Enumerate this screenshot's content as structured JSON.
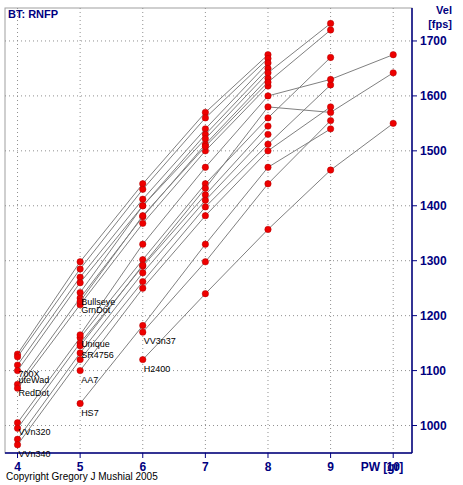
{
  "chart_data": {
    "type": "line",
    "title": "BT: RNFP",
    "y_label": "Vel [fps]",
    "x_label": "PW [gr]",
    "annotation": "Copyright  Gregory J Mushial  2005",
    "x": [
      4,
      5,
      6,
      7,
      8,
      9,
      10
    ],
    "xlim": [
      3.8,
      10.3
    ],
    "xticks": [
      4,
      5,
      6,
      7,
      8,
      9,
      10
    ],
    "ylim": [
      950,
      1760
    ],
    "yticks": [
      1000,
      1100,
      1200,
      1300,
      1400,
      1500,
      1600,
      1700
    ],
    "grid": true,
    "color": "#808080",
    "marker": "circle",
    "series": [
      {
        "values": [
          1130,
          1298,
          1440,
          1570,
          1675,
          null,
          null
        ]
      },
      {
        "values": [
          1125,
          1285,
          1430,
          1560,
          1668,
          null,
          null
        ]
      },
      {
        "name": "700X",
        "values": [
          1110,
          1270,
          1412,
          1540,
          1660,
          null,
          null
        ]
      },
      {
        "name": "uteWad",
        "values": [
          1100,
          1260,
          1400,
          1530,
          1650,
          null,
          null
        ]
      },
      {
        "name": "RedDot",
        "values": [
          1075,
          1232,
          1380,
          1512,
          1632,
          null,
          null
        ]
      },
      {
        "values": [
          1068,
          1220,
          1368,
          1500,
          1618,
          null,
          null
        ]
      },
      {
        "name": "VVn320",
        "values": [
          1005,
          1160,
          1302,
          1440,
          1560,
          1670,
          null
        ]
      },
      {
        "values": [
          995,
          1150,
          1290,
          1420,
          1545,
          null,
          null
        ]
      },
      {
        "values": [
          975,
          1132,
          1278,
          1410,
          1530,
          null,
          null
        ]
      },
      {
        "name": "VVn340",
        "values": [
          965,
          1120,
          1262,
          1398,
          1512,
          1620,
          null
        ]
      },
      {
        "name": "Bullseye",
        "values": [
          null,
          1242,
          1400,
          1522,
          1642,
          1732,
          null
        ]
      },
      {
        "name": "GrnDot",
        "values": [
          null,
          1226,
          1382,
          1508,
          1625,
          1720,
          null
        ]
      },
      {
        "name": "Unique",
        "values": [
          null,
          1165,
          1330,
          1470,
          1600,
          1630,
          1675
        ]
      },
      {
        "name": "SR4756",
        "values": [
          null,
          1145,
          1292,
          1432,
          1580,
          1570,
          1642
        ]
      },
      {
        "name": "AA7",
        "values": [
          null,
          1100,
          1250,
          1382,
          1500,
          1580,
          null
        ]
      },
      {
        "name": "HS7",
        "values": [
          null,
          1040,
          1182,
          1330,
          1470,
          1540,
          null
        ]
      },
      {
        "name": "VV3n37",
        "values": [
          null,
          null,
          1170,
          1298,
          1440,
          1555,
          null
        ]
      },
      {
        "name": "H2400",
        "values": [
          null,
          null,
          1120,
          1240,
          1357,
          1465,
          1550
        ]
      }
    ]
  }
}
